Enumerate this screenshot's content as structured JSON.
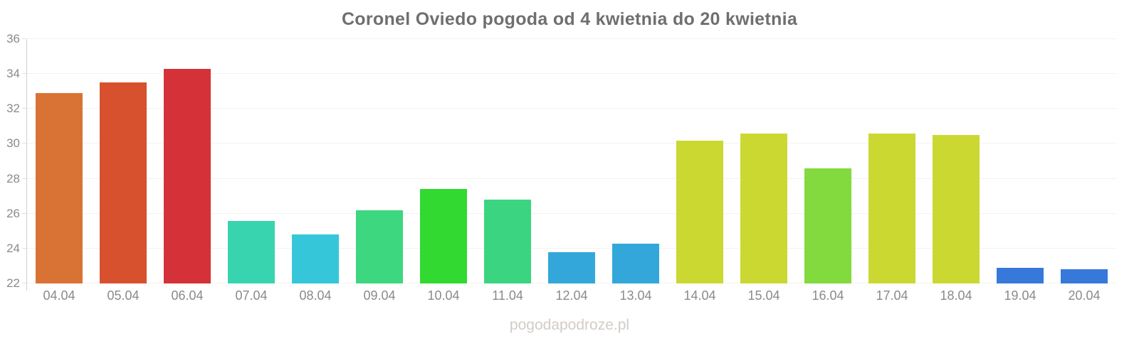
{
  "page": {
    "title": "Coronel Oviedo pogoda od 4 kwietnia do 20 kwietnia",
    "watermark": "pogodapodroze.pl"
  },
  "chart_data": {
    "type": "bar",
    "title": "Coronel Oviedo pogoda od 4 kwietnia do 20 kwietnia",
    "categories": [
      "04.04",
      "05.04",
      "06.04",
      "07.04",
      "08.04",
      "09.04",
      "10.04",
      "11.04",
      "12.04",
      "13.04",
      "14.04",
      "15.04",
      "16.04",
      "17.04",
      "18.04",
      "19.04",
      "20.04"
    ],
    "values": [
      32.9,
      33.5,
      34.3,
      25.6,
      24.8,
      26.2,
      27.4,
      26.8,
      23.8,
      24.3,
      30.2,
      30.6,
      28.6,
      30.6,
      30.5,
      22.9,
      22.8
    ],
    "bar_colors": [
      "#d97335",
      "#d8512f",
      "#d53138",
      "#38d4af",
      "#35c7d9",
      "#3dd77f",
      "#31d931",
      "#3bd581",
      "#33a7da",
      "#33a7da",
      "#cbd832",
      "#cbd832",
      "#82da3e",
      "#cbd832",
      "#cbd832",
      "#3778db",
      "#3778db"
    ],
    "xlabel": "",
    "ylabel": "",
    "ylim": [
      22,
      36
    ],
    "yticks": [
      22,
      24,
      26,
      28,
      30,
      32,
      34,
      36
    ],
    "grid": true,
    "legend": "none"
  },
  "colors": {
    "title": "#6f6f6f",
    "axis_label": "#8a8a8a",
    "axis_line": "#d6cfc9",
    "gridline": "#f4f2ef",
    "watermark": "#d3ccc4",
    "background": "#ffffff"
  }
}
